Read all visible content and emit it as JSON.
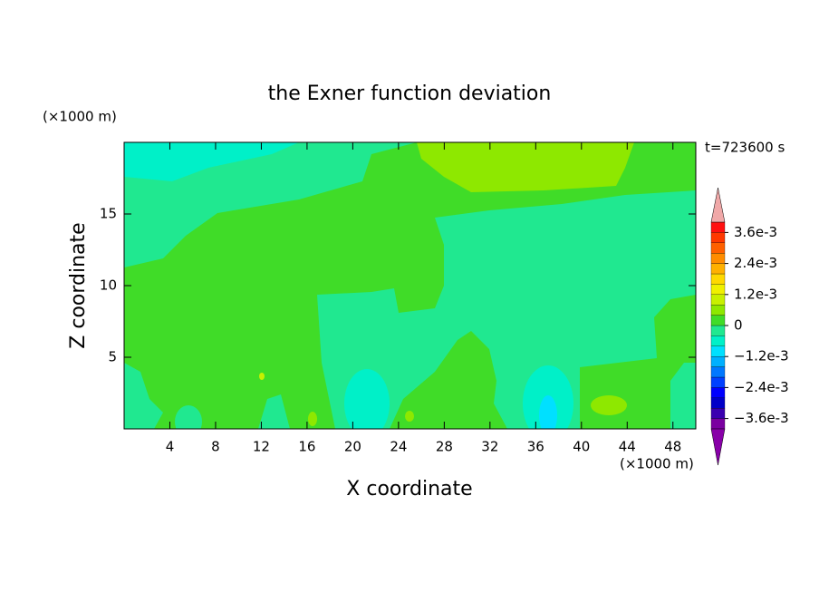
{
  "chart_data": {
    "type": "contour",
    "title": "the Exner function deviation",
    "xlabel": "X coordinate",
    "ylabel": "Z coordinate",
    "x_unit": "(×1000 m)",
    "y_unit": "(×1000 m)",
    "annotation": "t=723600 s",
    "xlim": [
      0,
      50
    ],
    "ylim": [
      0,
      20
    ],
    "xticks": [
      4,
      8,
      12,
      16,
      20,
      24,
      28,
      32,
      36,
      40,
      44,
      48
    ],
    "yticks": [
      5,
      10,
      15
    ],
    "levels": [
      -0.004,
      -0.0036,
      -0.0032,
      -0.0028,
      -0.0024,
      -0.002,
      -0.0016,
      -0.0012,
      -0.0008,
      -0.0004,
      0,
      0.0004,
      0.0008,
      0.0012,
      0.0016,
      0.002,
      0.0024,
      0.0028,
      0.0032,
      0.0036,
      0.004
    ],
    "colors": [
      "#7a00a0",
      "#3a00b0",
      "#0000c8",
      "#0000ff",
      "#0040ff",
      "#0078ff",
      "#00b0ff",
      "#00e0ff",
      "#00f0c8",
      "#20e890",
      "#40dc28",
      "#8ee800",
      "#c8f000",
      "#f0f000",
      "#ffd800",
      "#ffb000",
      "#ff8c00",
      "#ff6000",
      "#ff3800",
      "#ff1010"
    ],
    "under_color": "#8800a8",
    "over_color": "#f0a8a8",
    "colorbar_ticks": [
      {
        "value": 0.0036,
        "label": "3.6e-3"
      },
      {
        "value": 0.0024,
        "label": "2.4e-3"
      },
      {
        "value": 0.0012,
        "label": "1.2e-3"
      },
      0,
      {
        "value": -0.0012,
        "label": "−1.2e-3"
      },
      {
        "value": -0.0024,
        "label": "−2.4e-3"
      },
      {
        "value": -0.0036,
        "label": "−3.6e-3"
      }
    ]
  }
}
